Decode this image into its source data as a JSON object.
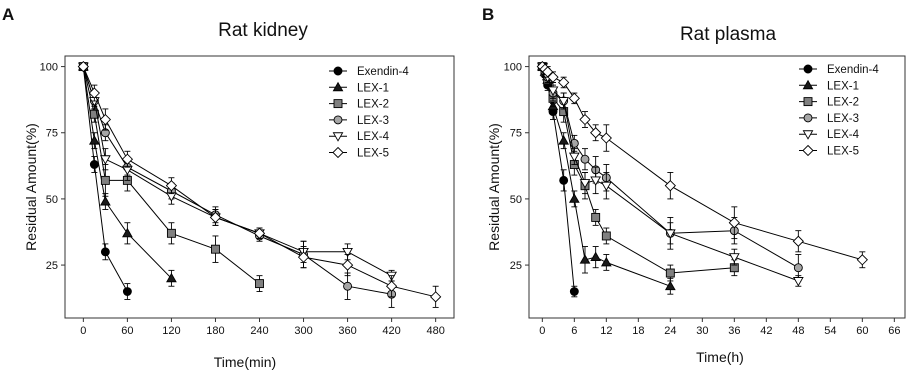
{
  "chart_data": [
    {
      "panel": "A",
      "type": "line",
      "title": "Rat kidney",
      "xlabel": "Time(min)",
      "ylabel": "Residual Amount(%)",
      "xticks": [
        "0",
        "60",
        "120",
        "180",
        "240",
        "300",
        "360",
        "420",
        "480"
      ],
      "yticks": [
        "25",
        "50",
        "75",
        "100"
      ],
      "xlim": [
        -25,
        505
      ],
      "ylim": [
        5,
        104
      ],
      "grid": false,
      "legend": "top-right",
      "series": [
        {
          "name": "Exendin-4",
          "marker": "circle",
          "fill": "#000000",
          "x": [
            0,
            15,
            30,
            60
          ],
          "y": [
            100,
            63,
            30,
            15
          ],
          "err": [
            0,
            3,
            3,
            3
          ]
        },
        {
          "name": "LEX-1",
          "marker": "triangle",
          "fill": "#1a1a1a",
          "x": [
            0,
            15,
            30,
            60,
            120
          ],
          "y": [
            100,
            72,
            49,
            37,
            20
          ],
          "err": [
            0,
            3,
            3,
            4,
            3
          ]
        },
        {
          "name": "LEX-2",
          "marker": "square",
          "fill": "#808080",
          "x": [
            0,
            15,
            30,
            60,
            120,
            180,
            240
          ],
          "y": [
            100,
            82,
            57,
            57,
            37,
            31,
            18
          ],
          "err": [
            0,
            3,
            6,
            4,
            4,
            5,
            3
          ]
        },
        {
          "name": "LEX-3",
          "marker": "circle",
          "fill": "#a6a6a6",
          "x": [
            0,
            15,
            30,
            60,
            120,
            180,
            240,
            300,
            360,
            420
          ],
          "y": [
            100,
            87,
            75,
            62,
            53,
            44,
            36,
            29,
            17,
            14
          ],
          "err": [
            0,
            3,
            3,
            3,
            3,
            3,
            2,
            5,
            5,
            5
          ]
        },
        {
          "name": "LEX-4",
          "marker": "triangle-down",
          "fill": "#ffffff",
          "x": [
            0,
            15,
            30,
            60,
            120,
            180,
            240,
            300,
            360,
            420
          ],
          "y": [
            100,
            87,
            65,
            61,
            51,
            43,
            37,
            30,
            30,
            21
          ],
          "err": [
            0,
            3,
            4,
            4,
            3,
            3,
            2,
            4,
            3,
            2
          ]
        },
        {
          "name": "LEX-5",
          "marker": "diamond",
          "fill": "#ffffff",
          "x": [
            0,
            15,
            30,
            60,
            120,
            180,
            240,
            300,
            360,
            420,
            480
          ],
          "y": [
            100,
            90,
            80,
            65,
            55,
            43,
            37,
            28,
            25,
            17,
            13
          ],
          "err": [
            0,
            3,
            4,
            3,
            3,
            3,
            2,
            4,
            4,
            4,
            4
          ]
        }
      ]
    },
    {
      "panel": "B",
      "type": "line",
      "title": "Rat plasma",
      "xlabel": "Time(h)",
      "ylabel": "Residual Amount(%)",
      "xticks": [
        "0",
        "6",
        "12",
        "18",
        "24",
        "30",
        "36",
        "42",
        "48",
        "54",
        "60",
        "66"
      ],
      "yticks": [
        "25",
        "50",
        "75",
        "100"
      ],
      "xlim": [
        -2.5,
        68
      ],
      "ylim": [
        5,
        104
      ],
      "grid": false,
      "legend": "top-right",
      "series": [
        {
          "name": "Exendin-4",
          "marker": "circle",
          "fill": "#000000",
          "x": [
            0,
            0.5,
            1,
            2,
            4,
            6
          ],
          "y": [
            100,
            97,
            93,
            83,
            57,
            15
          ],
          "err": [
            0,
            2,
            2,
            3,
            4,
            2
          ]
        },
        {
          "name": "LEX-1",
          "marker": "triangle",
          "fill": "#1a1a1a",
          "x": [
            0,
            0.5,
            1,
            2,
            4,
            6,
            8,
            10,
            12,
            24
          ],
          "y": [
            100,
            98,
            95,
            85,
            72,
            50,
            27,
            28,
            26,
            17
          ],
          "err": [
            0,
            2,
            2,
            3,
            3,
            3,
            5,
            4,
            3,
            3
          ]
        },
        {
          "name": "LEX-2",
          "marker": "square",
          "fill": "#808080",
          "x": [
            0,
            0.5,
            1,
            2,
            4,
            6,
            8,
            10,
            12,
            24,
            36
          ],
          "y": [
            100,
            98,
            95,
            88,
            83,
            63,
            55,
            43,
            36,
            22,
            24
          ],
          "err": [
            0,
            2,
            2,
            3,
            4,
            4,
            5,
            3,
            3,
            3,
            3
          ]
        },
        {
          "name": "LEX-3",
          "marker": "circle",
          "fill": "#a6a6a6",
          "x": [
            0,
            0.5,
            1,
            2,
            4,
            6,
            8,
            10,
            12,
            24,
            36,
            48
          ],
          "y": [
            100,
            98,
            96,
            90,
            87,
            71,
            65,
            61,
            58,
            37,
            38,
            24
          ],
          "err": [
            0,
            2,
            2,
            3,
            3,
            3,
            4,
            5,
            5,
            6,
            5,
            5
          ]
        },
        {
          "name": "LEX-4",
          "marker": "triangle-down",
          "fill": "#ffffff",
          "x": [
            0,
            0.5,
            1,
            2,
            4,
            6,
            8,
            10,
            12,
            24,
            36,
            48
          ],
          "y": [
            100,
            98,
            96,
            91,
            87,
            66,
            56,
            57,
            55,
            37,
            28,
            19
          ],
          "err": [
            0,
            2,
            2,
            3,
            3,
            3,
            4,
            5,
            5,
            4,
            3,
            2
          ]
        },
        {
          "name": "LEX-5",
          "marker": "diamond",
          "fill": "#ffffff",
          "x": [
            0,
            0.5,
            1,
            2,
            4,
            6,
            8,
            10,
            12,
            24,
            36,
            48,
            60
          ],
          "y": [
            100,
            99,
            98,
            96,
            94,
            88,
            80,
            75,
            73,
            55,
            41,
            34,
            27
          ],
          "err": [
            0,
            2,
            2,
            2,
            2,
            2,
            3,
            3,
            5,
            5,
            6,
            4,
            3
          ]
        }
      ]
    }
  ]
}
